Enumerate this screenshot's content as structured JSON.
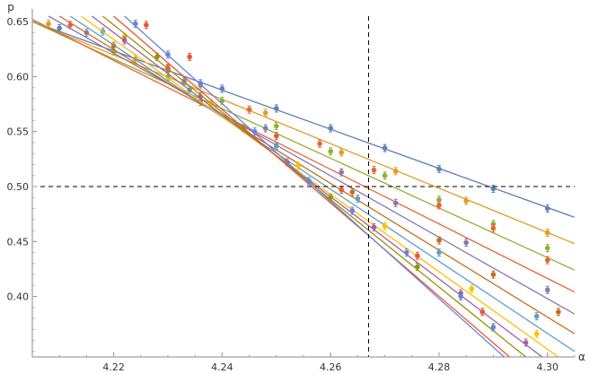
{
  "chart_data": {
    "type": "line",
    "title": "",
    "xlabel": "α",
    "ylabel": "p",
    "xlim": [
      4.205,
      4.305
    ],
    "ylim": [
      0.345,
      0.655
    ],
    "xticks": [
      4.22,
      4.24,
      4.26,
      4.28,
      4.3
    ],
    "xtick_labels": [
      "4.22",
      "4.24",
      "4.26",
      "4.28",
      "4.30"
    ],
    "yticks": [
      0.4,
      0.45,
      0.5,
      0.55,
      0.6,
      0.65
    ],
    "ytick_labels": [
      "0.40",
      "0.45",
      "0.50",
      "0.55",
      "0.60",
      "0.65"
    ],
    "grid": false,
    "legend": "none",
    "reference_lines": [
      {
        "orientation": "vertical",
        "x": 4.267,
        "style": "dashed"
      },
      {
        "orientation": "horizontal",
        "y": 0.5,
        "style": "dashed"
      }
    ],
    "series": [
      {
        "color": "#5e81b5",
        "fit": [
          [
            4.205,
            0.65
          ],
          [
            4.305,
            0.472
          ]
        ],
        "points": [
          [
            4.21,
            0.644
          ],
          [
            4.23,
            0.607
          ],
          [
            4.24,
            0.589
          ],
          [
            4.25,
            0.571
          ],
          [
            4.26,
            0.553
          ],
          [
            4.27,
            0.535
          ],
          [
            4.28,
            0.516
          ],
          [
            4.29,
            0.498
          ],
          [
            4.3,
            0.48
          ]
        ]
      },
      {
        "color": "#e19c24",
        "fit": [
          [
            4.205,
            0.65
          ],
          [
            4.305,
            0.448
          ]
        ],
        "points": [
          [
            4.208,
            0.648
          ],
          [
            4.224,
            0.616
          ],
          [
            4.236,
            0.592
          ],
          [
            4.248,
            0.567
          ],
          [
            4.262,
            0.531
          ],
          [
            4.272,
            0.514
          ],
          [
            4.285,
            0.487
          ],
          [
            4.3,
            0.458
          ]
        ]
      },
      {
        "color": "#8fb032",
        "fit": [
          [
            4.205,
            0.65
          ],
          [
            4.305,
            0.424
          ]
        ],
        "points": [
          [
            4.22,
            0.623
          ],
          [
            4.23,
            0.6
          ],
          [
            4.24,
            0.578
          ],
          [
            4.25,
            0.555
          ],
          [
            4.26,
            0.532
          ],
          [
            4.27,
            0.51
          ],
          [
            4.28,
            0.488
          ],
          [
            4.29,
            0.466
          ],
          [
            4.3,
            0.444
          ]
        ]
      },
      {
        "color": "#eb6235",
        "fit": [
          [
            4.205,
            0.652
          ],
          [
            4.305,
            0.404
          ]
        ],
        "points": [
          [
            4.212,
            0.647
          ],
          [
            4.23,
            0.608
          ],
          [
            4.245,
            0.57
          ],
          [
            4.258,
            0.539
          ],
          [
            4.268,
            0.515
          ],
          [
            4.28,
            0.483
          ],
          [
            4.29,
            0.462
          ],
          [
            4.3,
            0.433
          ]
        ]
      },
      {
        "color": "#8778b3",
        "fit": [
          [
            4.208,
            0.655
          ],
          [
            4.305,
            0.384
          ]
        ],
        "points": [
          [
            4.215,
            0.64
          ],
          [
            4.233,
            0.596
          ],
          [
            4.248,
            0.553
          ],
          [
            4.262,
            0.513
          ],
          [
            4.272,
            0.485
          ],
          [
            4.285,
            0.449
          ],
          [
            4.3,
            0.406
          ]
        ]
      },
      {
        "color": "#c56e1a",
        "fit": [
          [
            4.21,
            0.655
          ],
          [
            4.305,
            0.366
          ]
        ],
        "points": [
          [
            4.22,
            0.628
          ],
          [
            4.236,
            0.577
          ],
          [
            4.25,
            0.537
          ],
          [
            4.264,
            0.495
          ],
          [
            4.28,
            0.451
          ],
          [
            4.29,
            0.42
          ],
          [
            4.302,
            0.386
          ]
        ]
      },
      {
        "color": "#5d9ec7",
        "fit": [
          [
            4.212,
            0.655
          ],
          [
            4.305,
            0.35
          ]
        ],
        "points": [
          [
            4.218,
            0.641
          ],
          [
            4.234,
            0.588
          ],
          [
            4.25,
            0.537
          ],
          [
            4.265,
            0.489
          ],
          [
            4.28,
            0.44
          ],
          [
            4.298,
            0.382
          ]
        ]
      },
      {
        "color": "#ffbf00",
        "fit": [
          [
            4.214,
            0.655
          ],
          [
            4.302,
            0.345
          ]
        ],
        "points": [
          [
            4.222,
            0.636
          ],
          [
            4.238,
            0.576
          ],
          [
            4.254,
            0.519
          ],
          [
            4.27,
            0.464
          ],
          [
            4.286,
            0.407
          ],
          [
            4.298,
            0.366
          ]
        ]
      },
      {
        "color": "#a5609d",
        "fit": [
          [
            4.216,
            0.655
          ],
          [
            4.299,
            0.345
          ]
        ],
        "points": [
          [
            4.222,
            0.633
          ],
          [
            4.236,
            0.582
          ],
          [
            4.252,
            0.522
          ],
          [
            4.268,
            0.463
          ],
          [
            4.284,
            0.403
          ],
          [
            4.296,
            0.358
          ]
        ]
      },
      {
        "color": "#929600",
        "fit": [
          [
            4.218,
            0.655
          ],
          [
            4.296,
            0.345
          ]
        ],
        "points": [
          [
            4.228,
            0.618
          ],
          [
            4.244,
            0.553
          ],
          [
            4.26,
            0.49
          ],
          [
            4.276,
            0.427
          ],
          [
            4.29,
            0.372
          ]
        ]
      },
      {
        "color": "#e95536",
        "fit": [
          [
            4.22,
            0.655
          ],
          [
            4.293,
            0.345
          ]
        ],
        "points": [
          [
            4.226,
            0.647
          ],
          [
            4.234,
            0.618
          ],
          [
            4.25,
            0.546
          ],
          [
            4.262,
            0.497
          ],
          [
            4.276,
            0.437
          ],
          [
            4.288,
            0.386
          ]
        ]
      },
      {
        "color": "#6685d9",
        "fit": [
          [
            4.222,
            0.655
          ],
          [
            4.292,
            0.345
          ]
        ],
        "points": [
          [
            4.224,
            0.648
          ],
          [
            4.23,
            0.62
          ],
          [
            4.236,
            0.594
          ],
          [
            4.246,
            0.55
          ],
          [
            4.256,
            0.505
          ],
          [
            4.264,
            0.478
          ],
          [
            4.274,
            0.44
          ],
          [
            4.284,
            0.4
          ],
          [
            4.29,
            0.372
          ]
        ]
      }
    ]
  }
}
